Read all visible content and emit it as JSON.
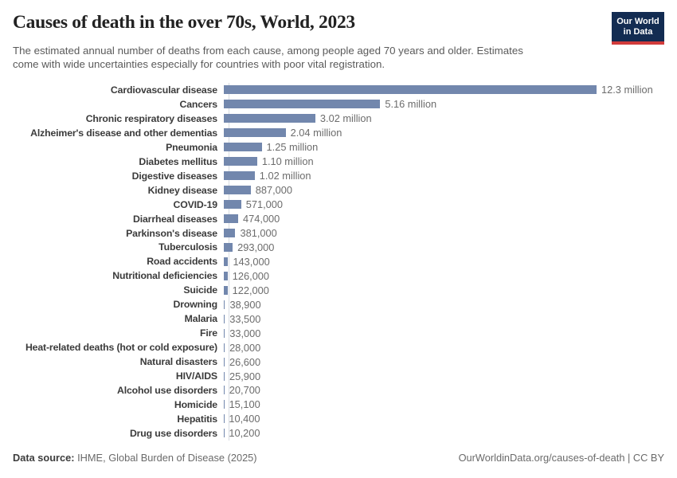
{
  "header": {
    "title": "Causes of death in the over 70s, World, 2023",
    "subtitle_line1": "The estimated annual number of deaths from each cause, among people aged 70 years and older. Estimates",
    "subtitle_line2": "come with wide uncertainties especially for countries with poor vital registration.",
    "logo_line1": "Our World",
    "logo_line2": "in Data"
  },
  "footer": {
    "datasource_label": "Data source:",
    "datasource_value": " IHME, Global Burden of Disease (2025)",
    "credit": "OurWorldinData.org/causes-of-death | CC BY"
  },
  "colors": {
    "bar": "#7287ad",
    "axis_line": "#d7dce3",
    "logo_navy": "#132c52",
    "logo_red": "#d13b3b"
  },
  "chart_data": {
    "type": "bar",
    "orientation": "horizontal",
    "title": "Causes of death in the over 70s, World, 2023",
    "xlabel": "",
    "ylabel": "",
    "unit": "deaths",
    "xlim": [
      0,
      12300000
    ],
    "grid": false,
    "legend": false,
    "categories": [
      "Cardiovascular disease",
      "Cancers",
      "Chronic respiratory diseases",
      "Alzheimer's disease and other dementias",
      "Pneumonia",
      "Diabetes mellitus",
      "Digestive diseases",
      "Kidney disease",
      "COVID-19",
      "Diarrheal diseases",
      "Parkinson's disease",
      "Tuberculosis",
      "Road accidents",
      "Nutritional deficiencies",
      "Suicide",
      "Drowning",
      "Malaria",
      "Fire",
      "Heat-related deaths (hot or cold exposure)",
      "Natural disasters",
      "HIV/AIDS",
      "Alcohol use disorders",
      "Homicide",
      "Hepatitis",
      "Drug use disorders"
    ],
    "values": [
      12300000,
      5160000,
      3020000,
      2040000,
      1250000,
      1100000,
      1020000,
      887000,
      571000,
      474000,
      381000,
      293000,
      143000,
      126000,
      122000,
      38900,
      33500,
      33000,
      28000,
      26600,
      25900,
      20700,
      15100,
      10400,
      10200
    ],
    "value_labels": [
      "12.3 million",
      "5.16 million",
      "3.02 million",
      "2.04 million",
      "1.25 million",
      "1.10 million",
      "1.02 million",
      "887,000",
      "571,000",
      "474,000",
      "381,000",
      "293,000",
      "143,000",
      "126,000",
      "122,000",
      "38,900",
      "33,500",
      "33,000",
      "28,000",
      "26,600",
      "25,900",
      "20,700",
      "15,100",
      "10,400",
      "10,200"
    ]
  }
}
